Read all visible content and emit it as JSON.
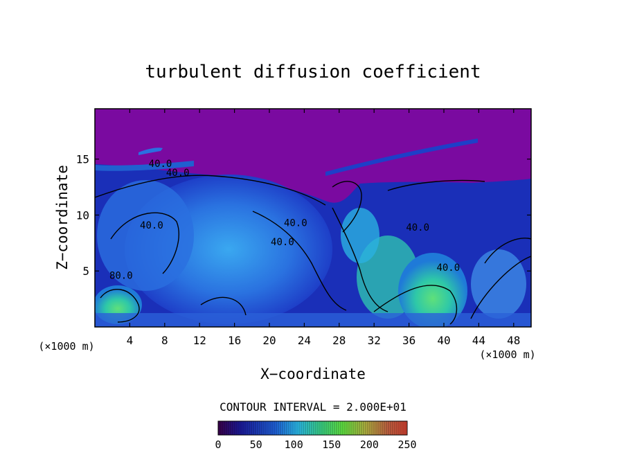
{
  "chart_data": {
    "type": "heatmap",
    "title": "turbulent diffusion coefficient",
    "xlabel": "X−coordinate",
    "ylabel": "Z−coordinate",
    "x_unit_left": "(×1000 m)",
    "x_unit_right": "(×1000 m)",
    "xlim": [
      0,
      50
    ],
    "ylim": [
      0,
      19.5
    ],
    "x_ticks": [
      4,
      8,
      12,
      16,
      20,
      24,
      28,
      32,
      36,
      40,
      44,
      48
    ],
    "y_ticks": [
      5,
      10,
      15
    ],
    "contour_interval_text": "CONTOUR INTERVAL = 2.000E+01",
    "contour_labels": [
      {
        "text": "40.0",
        "x": 7.5,
        "y": 14.3
      },
      {
        "text": "40.0",
        "x": 9.5,
        "y": 13.5
      },
      {
        "text": "40.0",
        "x": 6.5,
        "y": 8.8
      },
      {
        "text": "40.0",
        "x": 23.0,
        "y": 9.0
      },
      {
        "text": "40.0",
        "x": 21.5,
        "y": 7.3
      },
      {
        "text": "40.0",
        "x": 37.0,
        "y": 8.6
      },
      {
        "text": "80.0",
        "x": 3.0,
        "y": 4.3
      },
      {
        "text": "40.0",
        "x": 40.5,
        "y": 5.0
      }
    ],
    "colorbar": {
      "range": [
        0,
        250
      ],
      "ticks": [
        0,
        50,
        100,
        150,
        200,
        250
      ]
    }
  }
}
